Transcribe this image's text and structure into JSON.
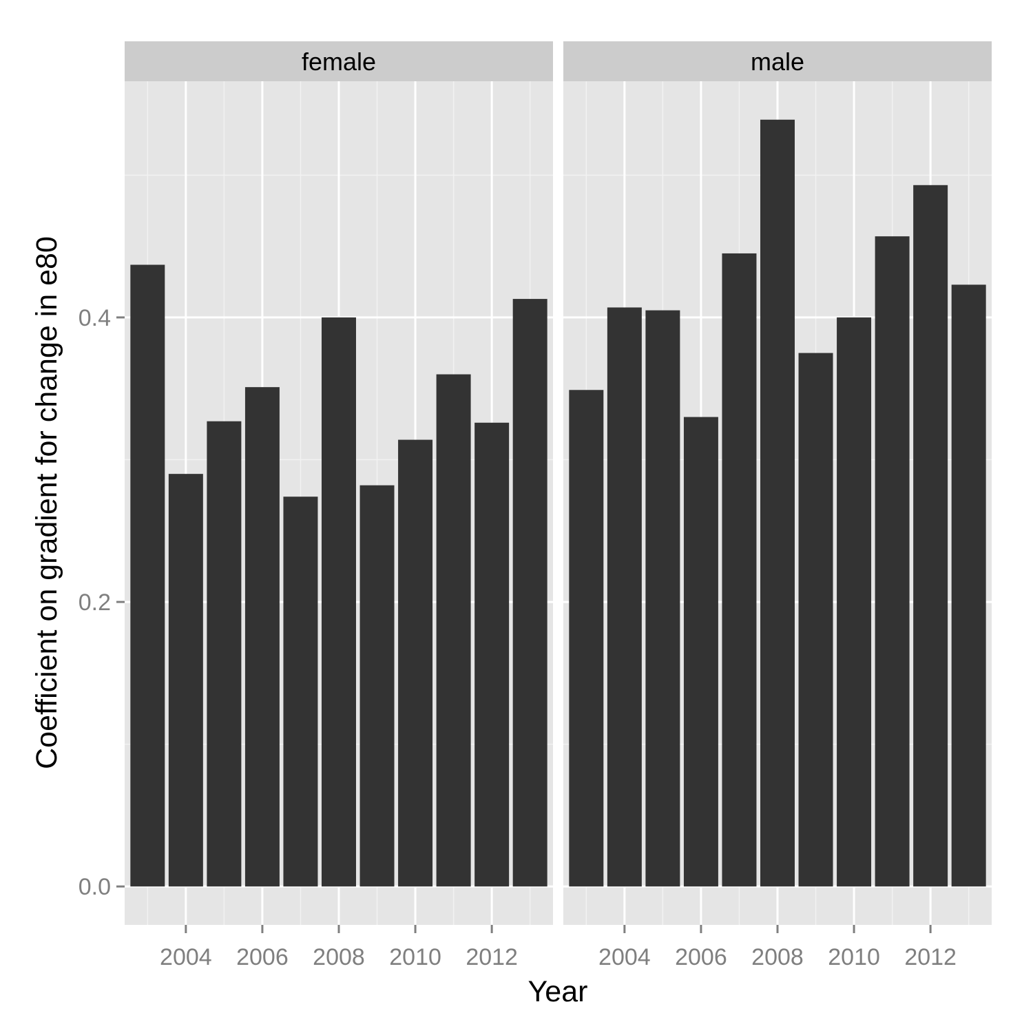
{
  "chart_data": {
    "type": "bar",
    "xlabel": "Year",
    "ylabel": "Coefficient on gradient for change in e80",
    "x": [
      2003,
      2004,
      2005,
      2006,
      2007,
      2008,
      2009,
      2010,
      2011,
      2012,
      2013
    ],
    "x_ticks": [
      2004,
      2006,
      2008,
      2010,
      2012
    ],
    "x_tick_labels": [
      "2004",
      "2006",
      "2008",
      "2010",
      "2012"
    ],
    "ylim": [
      -0.027,
      0.566
    ],
    "y_ticks": [
      0.0,
      0.2,
      0.4
    ],
    "y_tick_labels": [
      "0.0",
      "0.2",
      "0.4"
    ],
    "grid": true,
    "bar_color": "#333333",
    "panel_background": "#e5e5e5",
    "strip_background": "#cccccc",
    "facets": [
      {
        "name": "female",
        "values": [
          0.437,
          0.29,
          0.327,
          0.351,
          0.274,
          0.4,
          0.282,
          0.314,
          0.36,
          0.326,
          0.413
        ]
      },
      {
        "name": "male",
        "values": [
          0.349,
          0.407,
          0.405,
          0.33,
          0.445,
          0.539,
          0.375,
          0.4,
          0.457,
          0.493,
          0.423
        ]
      }
    ]
  }
}
